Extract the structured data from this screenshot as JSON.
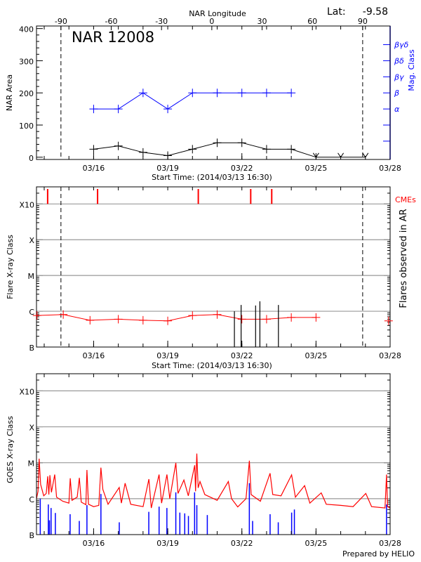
{
  "chart_data": [
    {
      "type": "line",
      "title": "NAR 12008",
      "lat_label": "Lat:",
      "lat_value": "-9.58",
      "top_axis_label": "NAR Longitude",
      "top_axis_ticks": [
        "-90",
        "-60",
        "-30",
        "0",
        "30",
        "60",
        "90"
      ],
      "top_axis_values": [
        -90,
        -60,
        -30,
        0,
        30,
        60,
        90
      ],
      "xlabel": "Start Time: (2014/03/13 16:30)",
      "xlim": [
        "2014-03-13T16:30",
        "2014-03-28T00:00"
      ],
      "x_ticks": [
        "03/16",
        "03/19",
        "03/22",
        "03/25",
        "03/28"
      ],
      "x_tick_times": [
        "2014-03-16T00:00",
        "2014-03-19T00:00",
        "2014-03-22T00:00",
        "2014-03-25T00:00",
        "2014-03-28T00:00"
      ],
      "ylabel": "NAR Area",
      "ylim": [
        -7,
        408
      ],
      "y_ticks": [
        "0",
        "100",
        "200",
        "300",
        "400"
      ],
      "y_tick_values": [
        0,
        100,
        200,
        300,
        400
      ],
      "right_axis_label": "Mag. Class",
      "right_axis_ticks": [
        "α",
        "β",
        "βγ",
        "βδ",
        "βγδ"
      ],
      "right_axis_values": [
        150,
        200,
        250,
        300,
        350
      ],
      "limb_lines": [
        "2014-03-14T16:15",
        "2014-03-26T21:20"
      ],
      "area_series": {
        "color": "#000000",
        "times": [
          "2014-03-16T00:00",
          "2014-03-17T00:00",
          "2014-03-18T00:00",
          "2014-03-19T00:00",
          "2014-03-20T00:00",
          "2014-03-21T00:00",
          "2014-03-22T00:00",
          "2014-03-23T00:00",
          "2014-03-24T00:00",
          "2014-03-25T00:00",
          "2014-03-26T00:00",
          "2014-03-27T00:00"
        ],
        "values": [
          25,
          35,
          15,
          5,
          25,
          45,
          45,
          25,
          25,
          0,
          0,
          0
        ],
        "missing_marker_from_index": 9
      },
      "mag_class_series": {
        "color": "#0000ff",
        "times": [
          "2014-03-16T00:00",
          "2014-03-17T00:00",
          "2014-03-18T00:00",
          "2014-03-19T00:00",
          "2014-03-20T00:00",
          "2014-03-21T00:00",
          "2014-03-22T00:00",
          "2014-03-23T00:00",
          "2014-03-24T00:00"
        ],
        "classes": [
          "α",
          "α",
          "β",
          "α",
          "β",
          "β",
          "β",
          "β",
          "β"
        ]
      }
    },
    {
      "type": "scatter",
      "xlabel": "Start Time: (2014/03/13 16:30)",
      "ylabel": "Flare X-ray Class",
      "right_axis_label": "Flares observed in AR",
      "scale": "log",
      "ylim": [
        1e-07,
        0.003
      ],
      "y_ticks": [
        "B",
        "C",
        "M",
        "X",
        "X10"
      ],
      "y_tick_values": [
        1e-07,
        1e-06,
        1e-05,
        0.0001,
        0.001
      ],
      "grid": true,
      "cme_label": "CMEs",
      "cme_color": "#ff0000",
      "cme_times": [
        "2014-03-14T03:20",
        "2014-03-16T03:50",
        "2014-03-20T05:40",
        "2014-03-22T08:35",
        "2014-03-23T05:00"
      ],
      "background_series": {
        "color": "#ff0000",
        "times": [
          "2014-03-13T17:00",
          "2014-03-14T18:30",
          "2014-03-15T20:30",
          "2014-03-17T00:00",
          "2014-03-18T00:00",
          "2014-03-19T00:00",
          "2014-03-20T00:00",
          "2014-03-21T00:00",
          "2014-03-22T00:00",
          "2014-03-23T00:00",
          "2014-03-24T00:00",
          "2014-03-25T00:00",
          "2014-03-27T22:30"
        ],
        "values": [
          7.6e-07,
          8.1e-07,
          5.6e-07,
          6e-07,
          5.6e-07,
          5.4e-07,
          7.6e-07,
          8.1e-07,
          6e-07,
          6e-07,
          6.7e-07,
          6.7e-07,
          5.4e-07
        ],
        "connected_count": 12
      },
      "flares": {
        "color": "#000000",
        "times": [
          "2014-03-21T16:45",
          "2014-03-21T23:15",
          "2014-03-22T13:20",
          "2014-03-22T17:30",
          "2014-03-23T11:30"
        ],
        "values": [
          1e-06,
          1.5e-06,
          1.45e-06,
          1.9e-06,
          1.5e-06
        ]
      },
      "x_ticks": [
        "03/16",
        "03/19",
        "03/22",
        "03/25",
        "03/28"
      ]
    },
    {
      "type": "line",
      "ylabel": "GOES X-ray Class",
      "scale": "log",
      "ylim": [
        1e-07,
        0.003
      ],
      "y_ticks": [
        "B",
        "C",
        "M",
        "X",
        "X10"
      ],
      "y_tick_values": [
        1e-07,
        1e-06,
        1e-05,
        0.0001,
        0.001
      ],
      "grid": true,
      "x_ticks": [
        "03/16",
        "03/19",
        "03/22",
        "03/25",
        "03/28"
      ],
      "footer": "Prepared by HELIO",
      "long_channel": {
        "color": "#ff0000",
        "points": [
          [
            "2014-03-13T16:30",
            1e-06
          ],
          [
            "2014-03-13T18:00",
            1.6e-06
          ],
          [
            "2014-03-13T19:05",
            1.3e-05
          ],
          [
            "2014-03-13T20:30",
            2.5e-06
          ],
          [
            "2014-03-13T23:30",
            1.2e-06
          ],
          [
            "2014-03-14T02:00",
            1.4e-06
          ],
          [
            "2014-03-14T03:25",
            4.2e-06
          ],
          [
            "2014-03-14T04:30",
            1.3e-06
          ],
          [
            "2014-03-14T05:30",
            4.5e-06
          ],
          [
            "2014-03-14T07:00",
            1.5e-06
          ],
          [
            "2014-03-14T10:15",
            4.7e-06
          ],
          [
            "2014-03-14T12:00",
            1.1e-06
          ],
          [
            "2014-03-14T18:00",
            8.5e-07
          ],
          [
            "2014-03-15T00:00",
            7.5e-07
          ],
          [
            "2014-03-15T01:15",
            3.7e-06
          ],
          [
            "2014-03-15T03:00",
            9e-07
          ],
          [
            "2014-03-15T08:00",
            1.1e-06
          ],
          [
            "2014-03-15T10:10",
            3.8e-06
          ],
          [
            "2014-03-15T12:00",
            8e-07
          ],
          [
            "2014-03-15T16:30",
            6.8e-07
          ],
          [
            "2014-03-15T17:30",
            6.3e-06
          ],
          [
            "2014-03-15T19:00",
            7e-07
          ],
          [
            "2014-03-16T00:00",
            6e-07
          ],
          [
            "2014-03-16T05:00",
            6.5e-07
          ],
          [
            "2014-03-16T07:05",
            7.3e-06
          ],
          [
            "2014-03-16T09:00",
            1.8e-06
          ],
          [
            "2014-03-16T14:00",
            7e-07
          ],
          [
            "2014-03-17T00:50",
            2.05e-06
          ],
          [
            "2014-03-17T03:00",
            7.5e-07
          ],
          [
            "2014-03-17T06:35",
            2.7e-06
          ],
          [
            "2014-03-17T12:00",
            7e-07
          ],
          [
            "2014-03-18T00:00",
            6e-07
          ],
          [
            "2014-03-18T05:40",
            3.5e-06
          ],
          [
            "2014-03-18T08:00",
            5.5e-07
          ],
          [
            "2014-03-18T15:35",
            4.7e-06
          ],
          [
            "2014-03-18T18:00",
            7.5e-07
          ],
          [
            "2014-03-18T23:10",
            4.7e-06
          ],
          [
            "2014-03-19T02:00",
            1e-06
          ],
          [
            "2014-03-19T07:50",
            9.9e-06
          ],
          [
            "2014-03-19T10:00",
            1.4e-06
          ],
          [
            "2014-03-19T15:40",
            3.3e-06
          ],
          [
            "2014-03-19T20:00",
            1.2e-06
          ],
          [
            "2014-03-20T02:10",
            8.5e-06
          ],
          [
            "2014-03-20T03:00",
            1.6e-06
          ],
          [
            "2014-03-20T04:15",
            1.8e-05
          ],
          [
            "2014-03-20T05:30",
            2e-06
          ],
          [
            "2014-03-20T07:20",
            3e-06
          ],
          [
            "2014-03-20T12:00",
            1.3e-06
          ],
          [
            "2014-03-21T00:00",
            9e-07
          ],
          [
            "2014-03-21T10:50",
            3e-06
          ],
          [
            "2014-03-21T14:00",
            1e-06
          ],
          [
            "2014-03-21T20:00",
            5.9e-07
          ],
          [
            "2014-03-22T04:00",
            1e-06
          ],
          [
            "2014-03-22T07:15",
            1.14e-05
          ],
          [
            "2014-03-22T09:00",
            1.3e-06
          ],
          [
            "2014-03-22T18:00",
            8.5e-07
          ],
          [
            "2014-03-23T03:25",
            5.1e-06
          ],
          [
            "2014-03-23T06:00",
            1.3e-06
          ],
          [
            "2014-03-23T14:00",
            1.2e-06
          ],
          [
            "2014-03-24T00:20",
            4.6e-06
          ],
          [
            "2014-03-24T04:00",
            1.1e-06
          ],
          [
            "2014-03-24T12:55",
            2.3e-06
          ],
          [
            "2014-03-24T18:00",
            7.5e-07
          ],
          [
            "2014-03-25T05:05",
            1.45e-06
          ],
          [
            "2014-03-25T10:00",
            7e-07
          ],
          [
            "2014-03-26T00:00",
            6.5e-07
          ],
          [
            "2014-03-26T12:00",
            6e-07
          ],
          [
            "2014-03-27T00:20",
            1.4e-06
          ],
          [
            "2014-03-27T06:00",
            6e-07
          ],
          [
            "2014-03-27T19:00",
            5.5e-07
          ],
          [
            "2014-03-27T20:30",
            4.7e-06
          ],
          [
            "2014-03-27T21:30",
            6e-07
          ],
          [
            "2014-03-28T00:00",
            5.5e-07
          ]
        ]
      },
      "short_channel": {
        "color": "#0000ff",
        "points": [
          [
            "2014-03-13T20:10",
            1e-06
          ],
          [
            "2014-03-14T04:00",
            6.9e-07
          ],
          [
            "2014-03-14T05:05",
            2.5e-07
          ],
          [
            "2014-03-14T06:40",
            5.5e-07
          ],
          [
            "2014-03-14T10:50",
            4e-07
          ],
          [
            "2014-03-15T01:10",
            3.7e-07
          ],
          [
            "2014-03-15T10:05",
            2.4e-07
          ],
          [
            "2014-03-15T17:30",
            6.6e-07
          ],
          [
            "2014-03-16T07:05",
            1.35e-06
          ],
          [
            "2014-03-17T00:55",
            2.2e-07
          ],
          [
            "2014-03-18T05:35",
            4.3e-07
          ],
          [
            "2014-03-18T15:35",
            6e-07
          ],
          [
            "2014-03-18T23:10",
            5.5e-07
          ],
          [
            "2014-03-19T07:50",
            1.5e-06
          ],
          [
            "2014-03-19T11:45",
            4.1e-07
          ],
          [
            "2014-03-19T16:30",
            3.9e-07
          ],
          [
            "2014-03-19T20:05",
            3.3e-07
          ],
          [
            "2014-03-20T02:05",
            1.5e-06
          ],
          [
            "2014-03-20T04:15",
            6.6e-07
          ],
          [
            "2014-03-20T14:25",
            3.5e-07
          ],
          [
            "2014-03-22T07:15",
            2.7e-06
          ],
          [
            "2014-03-22T10:25",
            2.4e-07
          ],
          [
            "2014-03-23T03:25",
            3.7e-07
          ],
          [
            "2014-03-23T11:20",
            2.2e-07
          ],
          [
            "2014-03-24T00:20",
            4.1e-07
          ],
          [
            "2014-03-24T03:00",
            5e-07
          ],
          [
            "2014-03-27T20:30",
            6.9e-07
          ]
        ]
      }
    }
  ]
}
